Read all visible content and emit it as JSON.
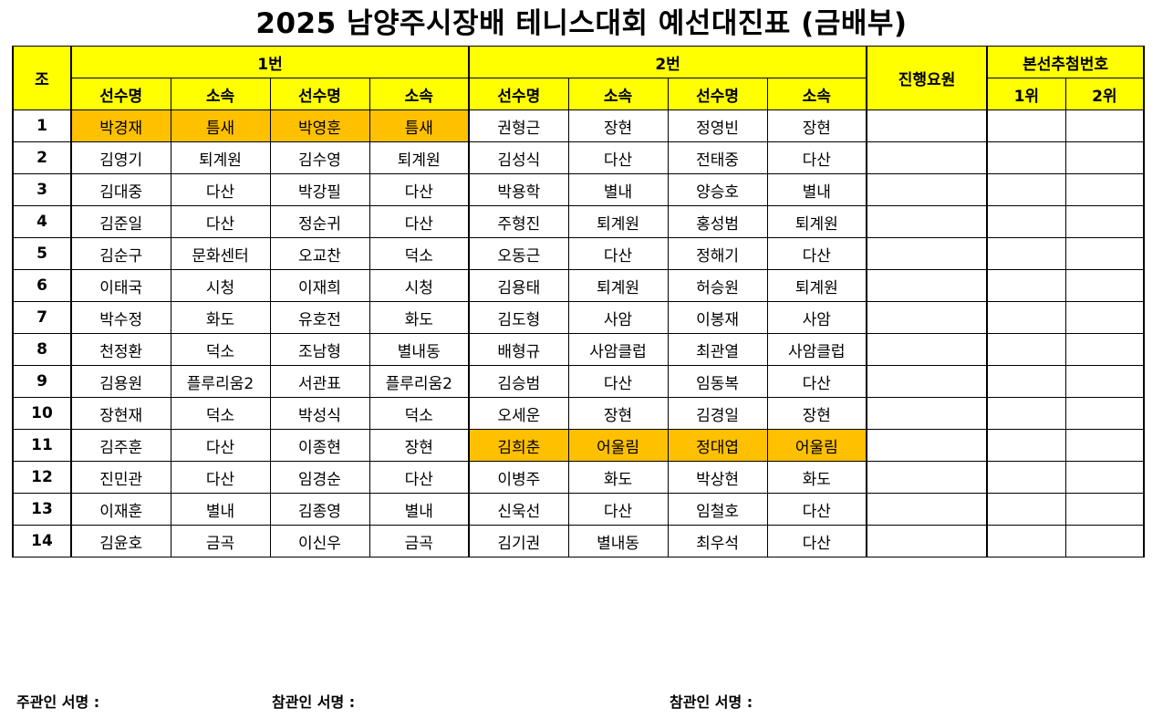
{
  "title": "2025 남양주시장배 테니스대회 예선대진표 (금배부)",
  "header": {
    "jo": "조",
    "group1": "1번",
    "group2": "2번",
    "staff": "진행요원",
    "draw": "본선추첨번호",
    "sub": [
      "선수명",
      "소속",
      "선수명",
      "소속",
      "선수명",
      "소속",
      "선수명",
      "소속"
    ],
    "rank1": "1위",
    "rank2": "2위"
  },
  "colors": {
    "header_bg": "#ffff00",
    "highlight_bg": "#ffc000"
  },
  "rows": [
    {
      "jo": "1",
      "c": [
        "박경재",
        "틈새",
        "박영훈",
        "틈새",
        "권형근",
        "장현",
        "정영빈",
        "장현"
      ],
      "hl1": true,
      "hl2": false
    },
    {
      "jo": "2",
      "c": [
        "김영기",
        "퇴계원",
        "김수영",
        "퇴계원",
        "김성식",
        "다산",
        "전태중",
        "다산"
      ],
      "hl1": false,
      "hl2": false
    },
    {
      "jo": "3",
      "c": [
        "김대중",
        "다산",
        "박강필",
        "다산",
        "박용학",
        "별내",
        "양승호",
        "별내"
      ],
      "hl1": false,
      "hl2": false
    },
    {
      "jo": "4",
      "c": [
        "김준일",
        "다산",
        "정순귀",
        "다산",
        "주형진",
        "퇴계원",
        "홍성범",
        "퇴계원"
      ],
      "hl1": false,
      "hl2": false
    },
    {
      "jo": "5",
      "c": [
        "김순구",
        "문화센터",
        "오교찬",
        "덕소",
        "오동근",
        "다산",
        "정해기",
        "다산"
      ],
      "hl1": false,
      "hl2": false
    },
    {
      "jo": "6",
      "c": [
        "이태국",
        "시청",
        "이재희",
        "시청",
        "김용태",
        "퇴계원",
        "허승원",
        "퇴계원"
      ],
      "hl1": false,
      "hl2": false
    },
    {
      "jo": "7",
      "c": [
        "박수정",
        "화도",
        "유호전",
        "화도",
        "김도형",
        "사암",
        "이봉재",
        "사암"
      ],
      "hl1": false,
      "hl2": false
    },
    {
      "jo": "8",
      "c": [
        "천정환",
        "덕소",
        "조남형",
        "별내동",
        "배형규",
        "사암클럽",
        "최관열",
        "사암클럽"
      ],
      "hl1": false,
      "hl2": false
    },
    {
      "jo": "9",
      "c": [
        "김용원",
        "플루리움2",
        "서관표",
        "플루리움2",
        "김승범",
        "다산",
        "임동복",
        "다산"
      ],
      "hl1": false,
      "hl2": false
    },
    {
      "jo": "10",
      "c": [
        "장현재",
        "덕소",
        "박성식",
        "덕소",
        "오세운",
        "장현",
        "김경일",
        "장현"
      ],
      "hl1": false,
      "hl2": false
    },
    {
      "jo": "11",
      "c": [
        "김주훈",
        "다산",
        "이종현",
        "장현",
        "김희춘",
        "어울림",
        "정대엽",
        "어울림"
      ],
      "hl1": false,
      "hl2": true
    },
    {
      "jo": "12",
      "c": [
        "진민관",
        "다산",
        "임경순",
        "다산",
        "이병주",
        "화도",
        "박상현",
        "화도"
      ],
      "hl1": false,
      "hl2": false
    },
    {
      "jo": "13",
      "c": [
        "이재훈",
        "별내",
        "김종영",
        "별내",
        "신욱선",
        "다산",
        "임철호",
        "다산"
      ],
      "hl1": false,
      "hl2": false
    },
    {
      "jo": "14",
      "c": [
        "김윤호",
        "금곡",
        "이신우",
        "금곡",
        "김기권",
        "별내동",
        "최우석",
        "다산"
      ],
      "hl1": false,
      "hl2": false
    }
  ],
  "signatures": {
    "host": "주관인 서명 :",
    "witness1": "참관인 서명 :",
    "witness2": "참관인 서명 :"
  }
}
